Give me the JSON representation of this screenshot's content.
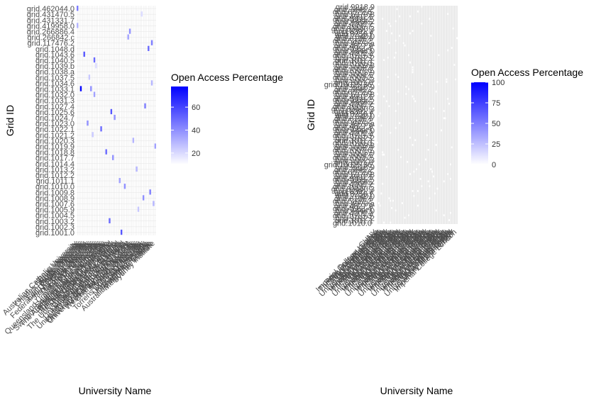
{
  "chart_data": [
    {
      "type": "heatmap",
      "xlabel": "University Name",
      "ylabel": "Grid ID",
      "y_tick_labels": [
        "grid.462044.0",
        "grid.431470.5",
        "grid.431331.7",
        "grid.419958.0",
        "grid.266886.4",
        "grid.266842.c",
        "grid.117476.2",
        "grid.1048.d",
        "grid.1043.6",
        "grid.1040.5",
        "grid.1039.b",
        "grid.1038.a",
        "grid.1037.5",
        "grid.1034.6",
        "grid.1033.1",
        "grid.1032.0",
        "grid.1031.3",
        "grid.1027.4",
        "grid.1025.6",
        "grid.1024.7",
        "grid.1023.0",
        "grid.1022.1",
        "grid.1021.2",
        "grid.1020.3",
        "grid.1019.9",
        "grid.1018.8",
        "grid.1017.7",
        "grid.1014.4",
        "grid.1013.2",
        "grid.1012.2",
        "grid.1011.1",
        "grid.1010.0",
        "grid.1009.8",
        "grid.1008.9",
        "grid.1007.6",
        "grid.1005.9",
        "grid.1004.5",
        "grid.1003.2",
        "grid.1002.3",
        "grid.1001.0"
      ],
      "x_tick_labels": [
        "Australian Catholic University",
        "Bond University",
        "Charles Darwin University",
        "Curtin University",
        "Deakin University",
        "Edith Cowan University",
        "Federation University Australia",
        "Griffith University",
        "James Cook University",
        "La Trobe University",
        "Macquarie University",
        "Monash University",
        "Queensland University of Technology",
        "RMIT University",
        "Southern Cross University",
        "Swinburne University of Technology",
        "The Australian National University",
        "The University of Adelaide",
        "The University of Melbourne",
        "The University of Newcastle",
        "The University of Queensland",
        "The University of Sydney",
        "The University of Western Australia",
        "University of Canberra",
        "University of New England",
        "University of New South Wales",
        "University of South Australia",
        "University of Southern Queensland",
        "University of Tasmania",
        "University of Technology Sydney",
        "University of the Sunshine Coast",
        "University of Wollongong",
        "Western Sydney University",
        "Charles Sturt University",
        "Flinders University",
        "Murdoch University",
        "Victoria University",
        "Torrens University Australia",
        "CQUniversity",
        "Avondale University",
        "Notre Dame Australia",
        "Batchelor Institute",
        "Australian Maritime College",
        "Melbourne Institute",
        "Sydney Institute"
      ],
      "cells": [
        {
          "x": 0,
          "y": 0,
          "value": 45
        },
        {
          "x": 38,
          "y": 1,
          "value": 20
        },
        {
          "x": 0,
          "y": 3,
          "value": 30
        },
        {
          "x": 31,
          "y": 4,
          "value": 40
        },
        {
          "x": 30,
          "y": 5,
          "value": 35
        },
        {
          "x": 44,
          "y": 6,
          "value": 45
        },
        {
          "x": 42,
          "y": 7,
          "value": 50
        },
        {
          "x": 4,
          "y": 8,
          "value": 55
        },
        {
          "x": 10,
          "y": 9,
          "value": 50
        },
        {
          "x": 11,
          "y": 10,
          "value": 20
        },
        {
          "x": 7,
          "y": 12,
          "value": 25
        },
        {
          "x": 44,
          "y": 13,
          "value": 30
        },
        {
          "x": 2,
          "y": 14,
          "value": 78
        },
        {
          "x": 8,
          "y": 14,
          "value": 40
        },
        {
          "x": 10,
          "y": 15,
          "value": 35
        },
        {
          "x": 40,
          "y": 17,
          "value": 45
        },
        {
          "x": 20,
          "y": 18,
          "value": 55
        },
        {
          "x": 22,
          "y": 19,
          "value": 40
        },
        {
          "x": 6,
          "y": 20,
          "value": 40
        },
        {
          "x": 14,
          "y": 21,
          "value": 50
        },
        {
          "x": 9,
          "y": 22,
          "value": 25
        },
        {
          "x": 33,
          "y": 23,
          "value": 30
        },
        {
          "x": 46,
          "y": 24,
          "value": 35
        },
        {
          "x": 17,
          "y": 25,
          "value": 50
        },
        {
          "x": 21,
          "y": 26,
          "value": 40
        },
        {
          "x": 35,
          "y": 28,
          "value": 30
        },
        {
          "x": 25,
          "y": 30,
          "value": 35
        },
        {
          "x": 28,
          "y": 31,
          "value": 40
        },
        {
          "x": 43,
          "y": 32,
          "value": 45
        },
        {
          "x": 39,
          "y": 33,
          "value": 40
        },
        {
          "x": 45,
          "y": 34,
          "value": 30
        },
        {
          "x": 36,
          "y": 35,
          "value": 25
        },
        {
          "x": 19,
          "y": 37,
          "value": 50
        },
        {
          "x": 26,
          "y": 39,
          "value": 55
        }
      ],
      "n_cols": 47,
      "legend": {
        "title": "Open Access Percentage",
        "ticks": [
          20,
          40,
          60
        ],
        "limits": [
          10,
          78
        ],
        "low_color": "#ffffff",
        "high_color": "#0000ff"
      },
      "grid": true,
      "legend_position": "right"
    },
    {
      "type": "heatmap",
      "xlabel": "University Name",
      "ylabel": "Grid ID",
      "n_rows": 90,
      "n_cols": 62,
      "y_tick_labels": [
        "grid.9918.9",
        "grid.7445.2",
        "grid.6572.6",
        "grid.5379.8",
        "grid.4991.5",
        "grid.4868.2",
        "grid.4464.2",
        "grid.4305.2",
        "grid.1006.7",
        "grid.83440.3",
        "grid.8391.3",
        "grid.8250.f",
        "grid.7340.0",
        "grid.6136.5",
        "grid.5337.2",
        "grid.4970.a",
        "grid.4827.9",
        "grid.4563.4",
        "grid.4444.0",
        "grid.4305.3",
        "grid.1013.3",
        "grid.1012.2",
        "grid.1011.1",
        "grid.1010.0",
        "grid.1009.8",
        "grid.1008.9",
        "grid.1007.6",
        "grid.1005.9",
        "grid.1004.5",
        "grid.1003.2",
        "grid.1002.3",
        "grid.1001.0",
        "grid.10025.36"
      ],
      "x_tick_labels": [
        "CUNY",
        "Imperial College London",
        "Rose Bruford College",
        "The Royal College of Art",
        "The Open University",
        "Trinity College Dublin",
        "Trinity Laban",
        "University College London",
        "University of Oxford",
        "University of Cambridge"
      ],
      "legend": {
        "title": "Open Access Percentage",
        "ticks": [
          0,
          25,
          50,
          75,
          100
        ],
        "limits": [
          0,
          100
        ],
        "low_color": "#ffffff",
        "high_color": "#0000ff"
      },
      "panel_background": "#ebebeb",
      "grid": true,
      "legend_position": "right"
    }
  ]
}
